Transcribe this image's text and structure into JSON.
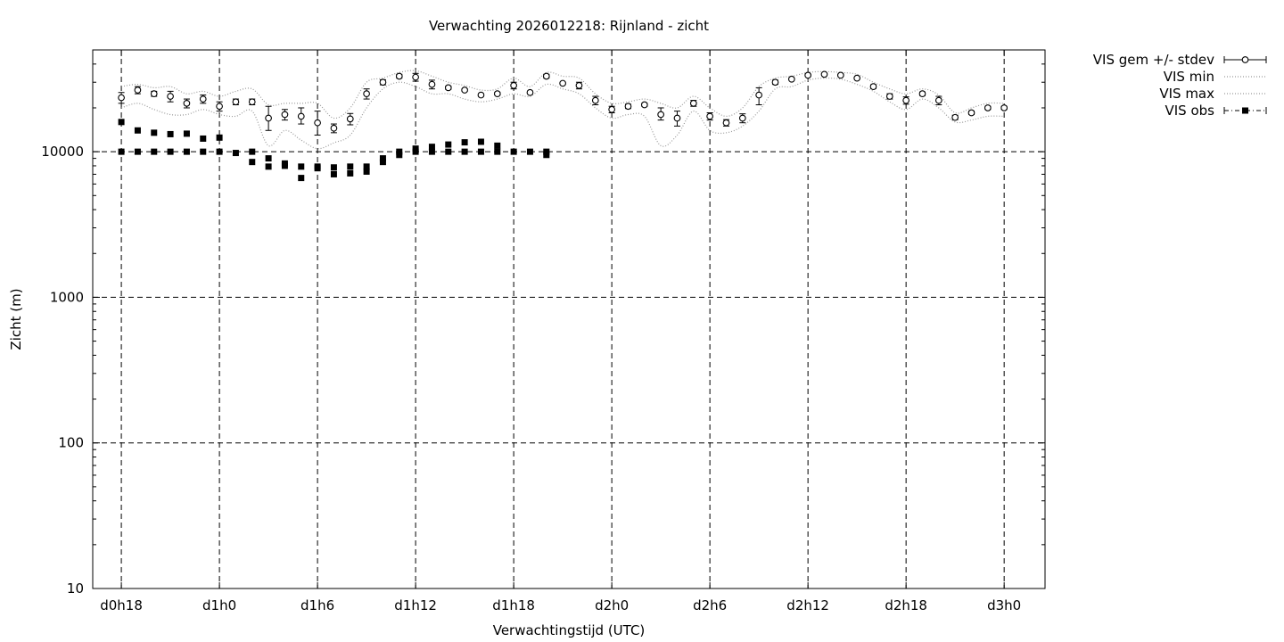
{
  "chart_data": {
    "type": "scatter",
    "title": "Verwachting 2026012218: Rijnland - zicht",
    "xlabel": "Verwachtingstijd (UTC)",
    "ylabel": "Zicht (m)",
    "y_scale": "log",
    "ylim": [
      10,
      50000
    ],
    "xlim_hours": [
      -1.75,
      56.5
    ],
    "grid": true,
    "legend_position": "outside-top-right",
    "x_ticks": [
      {
        "hour": 0,
        "label": "d0h18"
      },
      {
        "hour": 6,
        "label": "d1h0"
      },
      {
        "hour": 12,
        "label": "d1h6"
      },
      {
        "hour": 18,
        "label": "d1h12"
      },
      {
        "hour": 24,
        "label": "d1h18"
      },
      {
        "hour": 30,
        "label": "d2h0"
      },
      {
        "hour": 36,
        "label": "d2h6"
      },
      {
        "hour": 42,
        "label": "d2h12"
      },
      {
        "hour": 48,
        "label": "d2h18"
      },
      {
        "hour": 54,
        "label": "d3h0"
      }
    ],
    "y_ticks": [
      {
        "value": 10,
        "label": "10"
      },
      {
        "value": 100,
        "label": "100"
      },
      {
        "value": 1000,
        "label": "1000"
      },
      {
        "value": 10000,
        "label": "10000"
      }
    ],
    "legend": [
      {
        "label": "VIS gem +/- stdev",
        "style": "errorbar"
      },
      {
        "label": "VIS min",
        "style": "dotted"
      },
      {
        "label": "VIS max",
        "style": "dotted"
      },
      {
        "label": "VIS obs",
        "style": "obs"
      }
    ],
    "series": [
      {
        "name": "VIS gem +/- stdev",
        "x": [
          0,
          1,
          2,
          3,
          4,
          5,
          6,
          7,
          8,
          9,
          10,
          11,
          12,
          13,
          14,
          15,
          16,
          17,
          18,
          19,
          20,
          21,
          22,
          23,
          24,
          25,
          26,
          27,
          28,
          29,
          30,
          31,
          32,
          33,
          34,
          35,
          36,
          37,
          38,
          39,
          40,
          41,
          42,
          43,
          44,
          45,
          46,
          47,
          48,
          49,
          50,
          51,
          52,
          53,
          54
        ],
        "y": [
          23500,
          26500,
          25000,
          24000,
          21500,
          23000,
          20500,
          22000,
          22000,
          17000,
          18000,
          17500,
          15800,
          14500,
          16800,
          25000,
          30000,
          33000,
          32500,
          29000,
          27500,
          26500,
          24500,
          25000,
          28500,
          25500,
          33000,
          29500,
          28500,
          22500,
          19500,
          20500,
          21000,
          18000,
          17000,
          21500,
          17500,
          15800,
          17000,
          24500,
          30000,
          31500,
          33500,
          34000,
          33500,
          32000,
          28000,
          24000,
          22500,
          25000,
          22500,
          17200,
          18500,
          20000,
          20000
        ],
        "stdev_low": [
          21500,
          25000,
          24000,
          22000,
          20000,
          21500,
          19000,
          21000,
          21000,
          14000,
          16500,
          15500,
          13000,
          13500,
          15300,
          23000,
          28800,
          32000,
          30500,
          27000,
          26800,
          26000,
          24000,
          24500,
          27000,
          25000,
          32000,
          29000,
          27000,
          21000,
          18500,
          19800,
          20500,
          16500,
          15000,
          20500,
          16500,
          15000,
          15800,
          21000,
          29000,
          31000,
          33000,
          33500,
          33000,
          31500,
          27200,
          23000,
          21200,
          24300,
          21000,
          16600,
          18000,
          19500,
          19500
        ],
        "stdev_high": [
          25500,
          28000,
          26000,
          26000,
          23000,
          24500,
          22000,
          23000,
          23000,
          20500,
          19500,
          20000,
          19000,
          15500,
          18300,
          27000,
          31200,
          34000,
          34500,
          31000,
          28200,
          27000,
          25000,
          25500,
          30000,
          26000,
          34000,
          30000,
          30000,
          24000,
          20500,
          21200,
          21500,
          20000,
          19000,
          22500,
          18500,
          16600,
          18200,
          27500,
          31000,
          32000,
          34000,
          34500,
          34000,
          32500,
          28800,
          25000,
          23800,
          25700,
          24000,
          17800,
          19000,
          20500,
          20500
        ]
      },
      {
        "name": "VIS min",
        "x": [
          0,
          1,
          2,
          3,
          4,
          5,
          6,
          7,
          8,
          9,
          10,
          11,
          12,
          13,
          14,
          15,
          16,
          17,
          18,
          19,
          20,
          21,
          22,
          23,
          24,
          25,
          26,
          27,
          28,
          29,
          30,
          31,
          32,
          33,
          34,
          35,
          36,
          37,
          38,
          39,
          40,
          41,
          42,
          43,
          44,
          45,
          46,
          47,
          48,
          49,
          50,
          51,
          52,
          53,
          54
        ],
        "y": [
          20000,
          21500,
          19500,
          18000,
          18000,
          19500,
          18000,
          17500,
          19000,
          11000,
          14000,
          12000,
          10500,
          11500,
          13000,
          20000,
          27000,
          30000,
          28000,
          25000,
          25000,
          23000,
          22000,
          23000,
          25000,
          24000,
          29000,
          27000,
          25000,
          20000,
          17000,
          18000,
          17500,
          11000,
          13000,
          19000,
          14000,
          13500,
          15000,
          19000,
          27000,
          28000,
          31000,
          32000,
          31500,
          29000,
          26000,
          22000,
          19500,
          23000,
          20000,
          16000,
          16500,
          17500,
          17500
        ]
      },
      {
        "name": "VIS max",
        "x": [
          0,
          1,
          2,
          3,
          4,
          5,
          6,
          7,
          8,
          9,
          10,
          11,
          12,
          13,
          14,
          15,
          16,
          17,
          18,
          19,
          20,
          21,
          22,
          23,
          24,
          25,
          26,
          27,
          28,
          29,
          30,
          31,
          32,
          33,
          34,
          35,
          36,
          37,
          38,
          39,
          40,
          41,
          42,
          43,
          44,
          45,
          46,
          47,
          48,
          49,
          50,
          51,
          52,
          53,
          54
        ],
        "y": [
          28000,
          29000,
          27500,
          28000,
          25000,
          26000,
          24000,
          26000,
          27000,
          21000,
          21500,
          21500,
          21500,
          17000,
          20000,
          30000,
          32000,
          35000,
          36000,
          33000,
          30000,
          28500,
          26500,
          27000,
          32000,
          28000,
          35000,
          33000,
          32000,
          25000,
          21500,
          22000,
          23000,
          21500,
          20000,
          24000,
          20000,
          17500,
          20000,
          28000,
          32000,
          33000,
          35000,
          35500,
          35000,
          34000,
          30000,
          27000,
          25000,
          27000,
          24500,
          18500,
          20000,
          21500,
          21500
        ]
      },
      {
        "name": "VIS obs",
        "x": [
          0,
          0,
          1,
          1,
          2,
          2,
          3,
          3,
          4,
          4,
          5,
          5,
          6,
          6,
          7,
          8,
          8,
          9,
          9,
          10,
          10,
          11,
          11,
          12,
          12,
          13,
          13,
          14,
          14,
          15,
          15,
          16,
          16,
          17,
          17,
          18,
          18,
          19,
          19,
          20,
          20,
          21,
          21,
          22,
          22,
          23,
          23,
          24,
          25,
          26,
          26
        ],
        "y": [
          16000,
          10000,
          14000,
          10000,
          13500,
          10000,
          13200,
          10000,
          13300,
          10000,
          12300,
          10000,
          12500,
          10000,
          9800,
          10000,
          8500,
          7900,
          9000,
          8000,
          8300,
          6600,
          7900,
          7700,
          7900,
          7000,
          7800,
          7100,
          7900,
          7300,
          7900,
          8500,
          9000,
          9500,
          10000,
          10000,
          10500,
          10000,
          10800,
          10000,
          11200,
          10000,
          11600,
          10000,
          11700,
          10000,
          11000,
          10000,
          10000,
          9500,
          10000
        ]
      }
    ]
  }
}
